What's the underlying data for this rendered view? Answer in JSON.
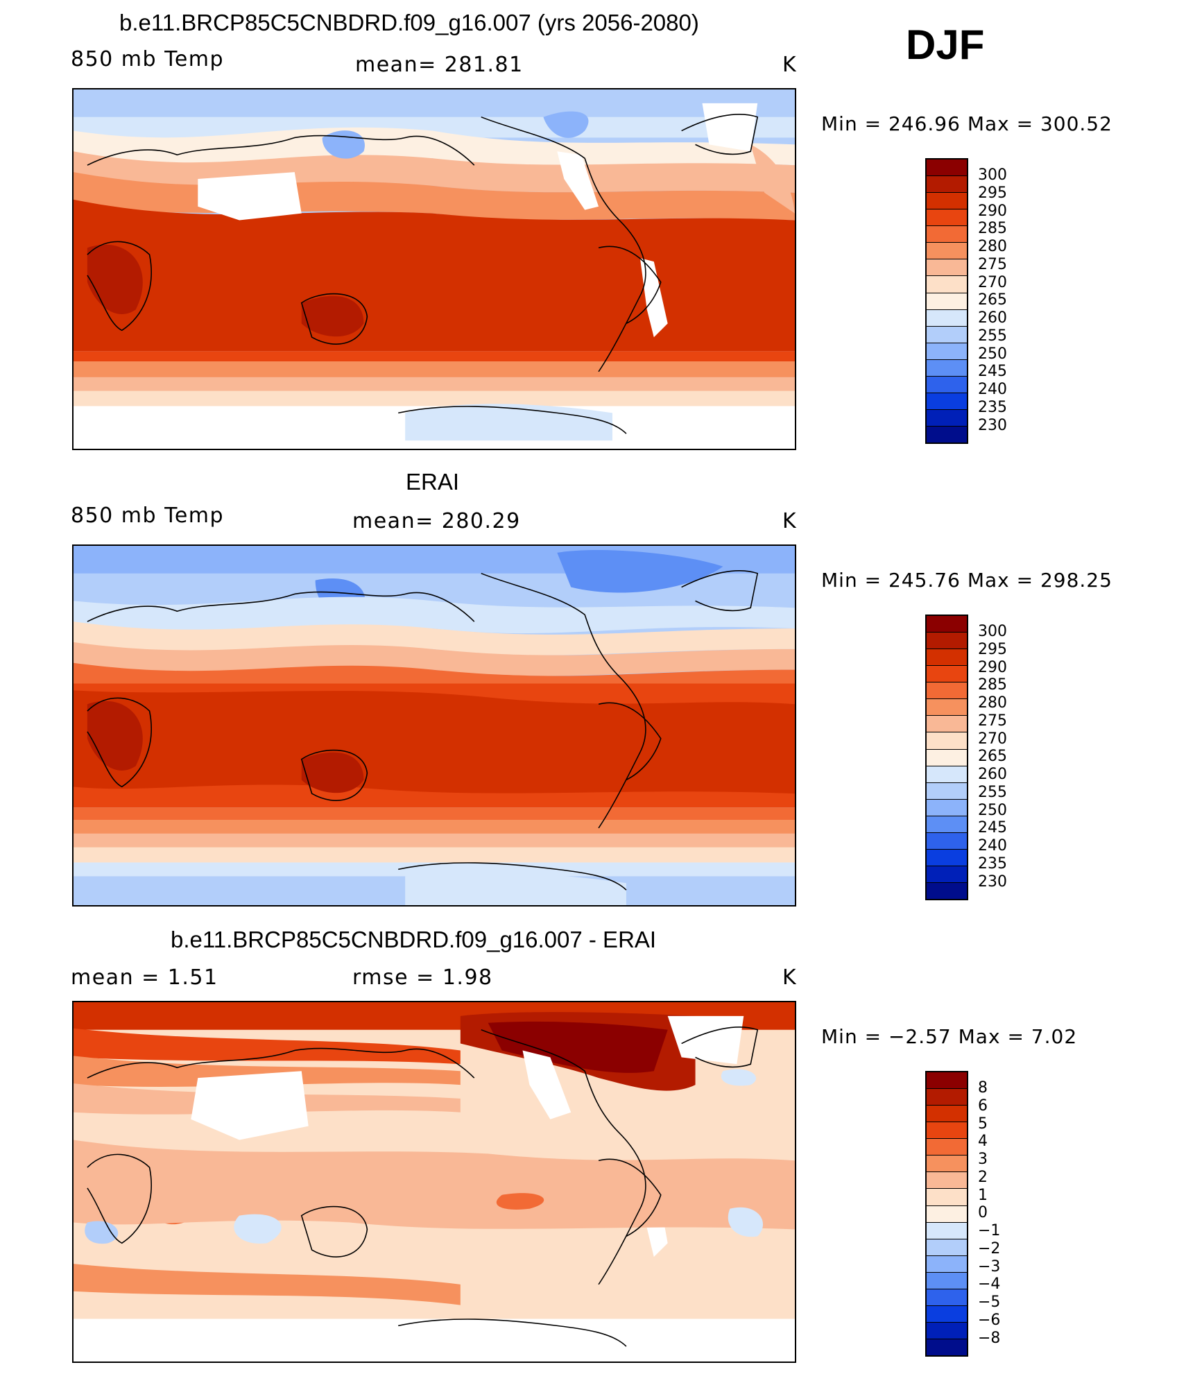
{
  "figure": {
    "season": "DJF",
    "panels": [
      {
        "title": "b.e11.BRCP85C5CNBDRD.f09_g16.007 (yrs 2056-2080)",
        "left_label": "850 mb  Temp",
        "center_label": "mean=  281.81",
        "units": "K",
        "minmax": "Min  =  246.96  Max  =  300.52",
        "min": 246.96,
        "max": 300.52,
        "mean": 281.81,
        "kind": "model"
      },
      {
        "title": "ERAI",
        "left_label": "850 mb  Temp",
        "center_label": "mean=  280.29",
        "units": "K",
        "minmax": "Min  =  245.76  Max  =  298.25",
        "min": 245.76,
        "max": 298.25,
        "mean": 280.29,
        "kind": "obs"
      },
      {
        "title": "b.e11.BRCP85C5CNBDRD.f09_g16.007 - ERAI",
        "left_label": "mean  =     1.51",
        "center_label": "rmse  =     1.98",
        "units": "K",
        "minmax": "Min  =    −2.57  Max  =     7.02",
        "min": -2.57,
        "max": 7.02,
        "mean": 1.51,
        "rmse": 1.98,
        "kind": "diff"
      }
    ]
  },
  "colorbar_abs": {
    "labels": [
      "300",
      "295",
      "290",
      "285",
      "280",
      "275",
      "270",
      "265",
      "260",
      "255",
      "250",
      "245",
      "240",
      "235",
      "230"
    ],
    "colors": [
      "#8b0000",
      "#b31b00",
      "#d33000",
      "#e84510",
      "#f26a35",
      "#f6915e",
      "#f9b896",
      "#fde0c8",
      "#fdf0e2",
      "#d6e7fb",
      "#b2cefa",
      "#8cb3fa",
      "#5d8ff5",
      "#2e62ec",
      "#0a3ee0",
      "#0020b8",
      "#000d8c"
    ]
  },
  "colorbar_diff": {
    "labels": [
      "8",
      "6",
      "5",
      "4",
      "3",
      "2",
      "1",
      "0",
      "−1",
      "−2",
      "−3",
      "−4",
      "−5",
      "−6",
      "−8"
    ],
    "colors": [
      "#8b0000",
      "#b31b00",
      "#d33000",
      "#e84510",
      "#f26a35",
      "#f6915e",
      "#f9b896",
      "#fde0c8",
      "#fdf0e2",
      "#d6e7fb",
      "#b2cefa",
      "#8cb3fa",
      "#5d8ff5",
      "#2e62ec",
      "#0a3ee0",
      "#0020b8",
      "#000d8c"
    ]
  }
}
